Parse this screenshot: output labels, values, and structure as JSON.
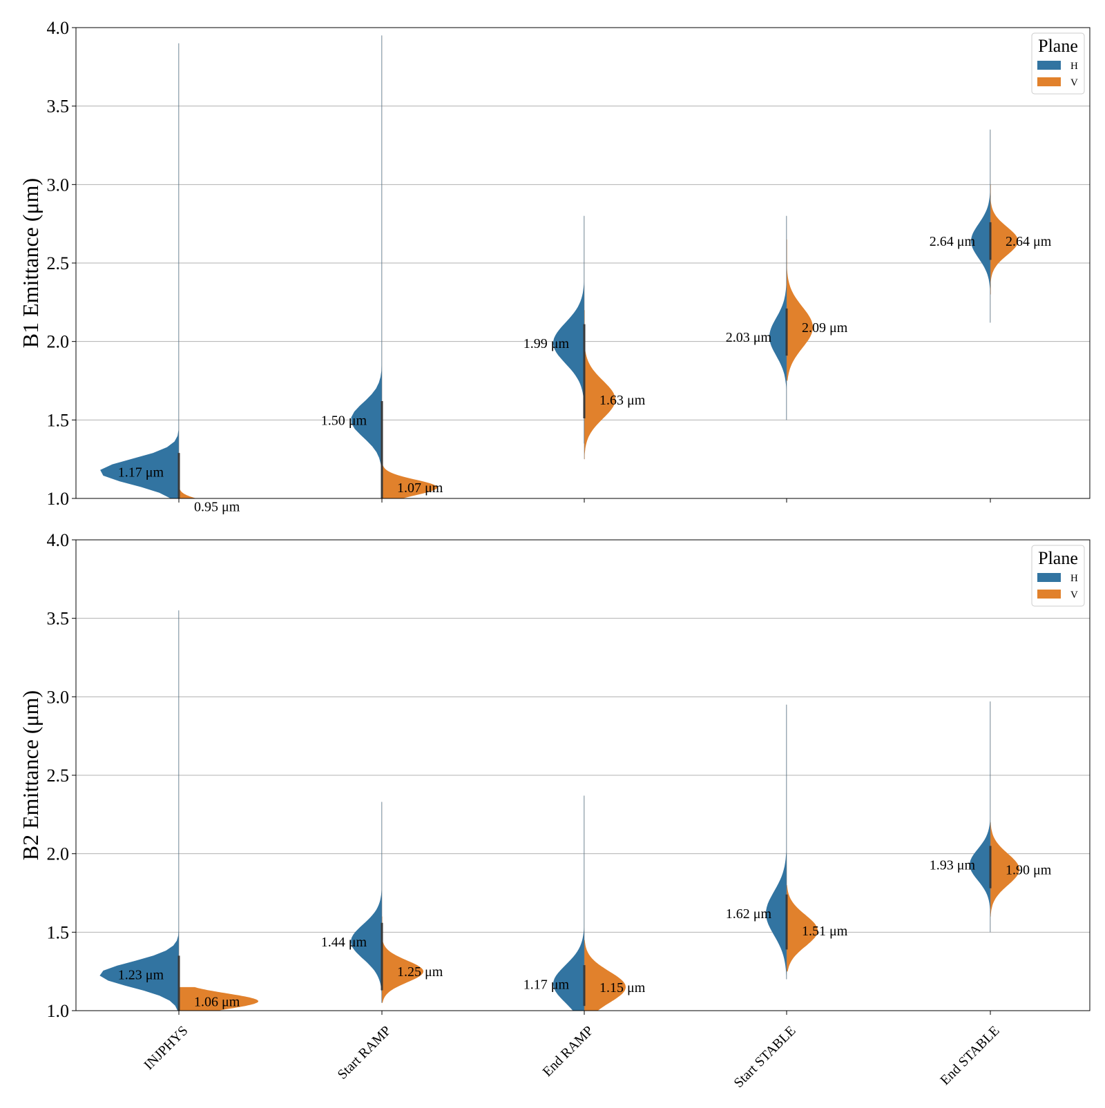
{
  "chart_data": [
    {
      "type": "violin",
      "panel": "B1",
      "ylabel": "B1 Emittance (μm)",
      "ylim": [
        1.0,
        4.0
      ],
      "yticks": [
        "1.0",
        "1.5",
        "2.0",
        "2.5",
        "3.0",
        "3.5",
        "4.0"
      ],
      "grid": true,
      "categories": [
        "INJPHYS",
        "Start RAMP",
        "End RAMP",
        "Start STABLE",
        "End STABLE"
      ],
      "legend": {
        "title": "Plane",
        "placement": "top-right",
        "entries": [
          "H",
          "V"
        ]
      },
      "series": [
        {
          "name": "H",
          "color": "#3274a1",
          "medians": [
            1.17,
            1.5,
            1.99,
            2.03,
            2.64
          ],
          "labels": [
            "1.17 μm",
            "1.50 μm",
            "1.99 μm",
            "2.03 μm",
            "2.64 μm"
          ],
          "ranges": [
            [
              1.0,
              3.9
            ],
            [
              1.0,
              3.95
            ],
            [
              1.35,
              2.8
            ],
            [
              1.5,
              2.8
            ],
            [
              2.12,
              3.35
            ]
          ]
        },
        {
          "name": "V",
          "color": "#e1812c",
          "medians": [
            0.95,
            1.07,
            1.63,
            2.09,
            2.64
          ],
          "labels": [
            "0.95 μm",
            "1.07 μm",
            "1.63 μm",
            "2.09 μm",
            "2.64 μm"
          ],
          "ranges": [
            [
              1.0,
              1.1
            ],
            [
              1.0,
              1.35
            ],
            [
              1.25,
              2.2
            ],
            [
              1.75,
              2.65
            ],
            [
              2.3,
              3.0
            ]
          ]
        }
      ]
    },
    {
      "type": "violin",
      "panel": "B2",
      "ylabel": "B2 Emittance (μm)",
      "ylim": [
        1.0,
        4.0
      ],
      "yticks": [
        "1.0",
        "1.5",
        "2.0",
        "2.5",
        "3.0",
        "3.5",
        "4.0"
      ],
      "grid": true,
      "categories": [
        "INJPHYS",
        "Start RAMP",
        "End RAMP",
        "Start STABLE",
        "End STABLE"
      ],
      "legend": {
        "title": "Plane",
        "placement": "top-right",
        "entries": [
          "H",
          "V"
        ]
      },
      "series": [
        {
          "name": "H",
          "color": "#3274a1",
          "medians": [
            1.23,
            1.44,
            1.17,
            1.62,
            1.93
          ],
          "labels": [
            "1.23 μm",
            "1.44 μm",
            "1.17 μm",
            "1.62 μm",
            "1.93 μm"
          ],
          "ranges": [
            [
              1.0,
              3.55
            ],
            [
              1.05,
              2.33
            ],
            [
              1.0,
              2.37
            ],
            [
              1.2,
              2.95
            ],
            [
              1.5,
              2.97
            ]
          ]
        },
        {
          "name": "V",
          "color": "#e1812c",
          "medians": [
            1.06,
            1.25,
            1.15,
            1.51,
            1.9
          ],
          "labels": [
            "1.06 μm",
            "1.25 μm",
            "1.15 μm",
            "1.51 μm",
            "1.90 μm"
          ],
          "ranges": [
            [
              1.0,
              1.15
            ],
            [
              1.05,
              1.6
            ],
            [
              1.0,
              1.45
            ],
            [
              1.25,
              1.8
            ],
            [
              1.6,
              2.2
            ]
          ]
        }
      ]
    }
  ]
}
